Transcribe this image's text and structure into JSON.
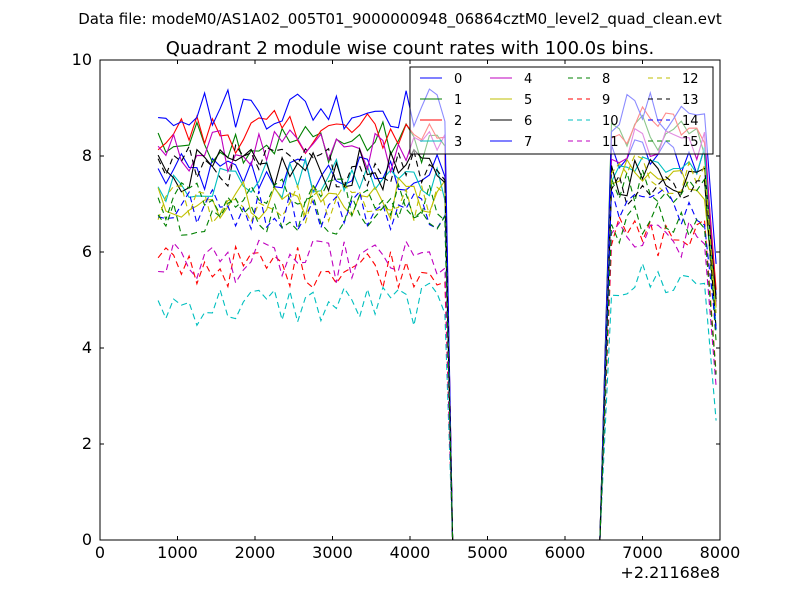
{
  "chart_data": {
    "type": "line",
    "suptitle": "Data file: modeM0/AS1A02_005T01_9000000948_06864cztM0_level2_quad_clean.evt",
    "title": "Quadrant 2 module wise count rates with 100.0s bins.",
    "xlabel": "",
    "ylabel": "",
    "x_offset_label": "+2.21168e8",
    "xlim": [
      0,
      8000
    ],
    "ylim": [
      0,
      10
    ],
    "x_ticks": [
      "0",
      "1000",
      "2000",
      "3000",
      "4000",
      "5000",
      "6000",
      "7000",
      "8000"
    ],
    "y_ticks": [
      "0",
      "2",
      "4",
      "6",
      "8",
      "10"
    ],
    "legend_position": "top-right",
    "gap": [
      4550,
      6450
    ],
    "first_x": 750,
    "last_x": 7950,
    "bin": 100,
    "series": [
      {
        "name": "0",
        "color": "#0000ff",
        "dash": "solid",
        "base1": 7.6,
        "base2": 8.0
      },
      {
        "name": "1",
        "color": "#008000",
        "dash": "solid",
        "base1": 8.3,
        "base2": 8.4
      },
      {
        "name": "2",
        "color": "#ff0000",
        "dash": "solid",
        "base1": 8.5,
        "base2": 8.6
      },
      {
        "name": "3",
        "color": "#00bfbf",
        "dash": "solid",
        "base1": 7.5,
        "base2": 7.8
      },
      {
        "name": "4",
        "color": "#bf00bf",
        "dash": "solid",
        "base1": 8.1,
        "base2": 8.2
      },
      {
        "name": "5",
        "color": "#bfbf00",
        "dash": "solid",
        "base1": 7.1,
        "base2": 7.5
      },
      {
        "name": "6",
        "color": "#000000",
        "dash": "solid",
        "base1": 7.7,
        "base2": 7.6
      },
      {
        "name": "7",
        "color": "#0000ff",
        "dash": "solid",
        "base1": 9.0,
        "base2": 8.9
      },
      {
        "name": "8",
        "color": "#008000",
        "dash": "dashed",
        "base1": 7.1,
        "base2": 7.3
      },
      {
        "name": "9",
        "color": "#ff0000",
        "dash": "dashed",
        "base1": 5.7,
        "base2": 6.3
      },
      {
        "name": "10",
        "color": "#00bfbf",
        "dash": "dashed",
        "base1": 4.9,
        "base2": 5.4
      },
      {
        "name": "11",
        "color": "#bf00bf",
        "dash": "dashed",
        "base1": 5.8,
        "base2": 6.2
      },
      {
        "name": "12",
        "color": "#bfbf00",
        "dash": "dashed",
        "base1": 7.0,
        "base2": 7.6
      },
      {
        "name": "13",
        "color": "#000000",
        "dash": "dashed",
        "base1": 7.8,
        "base2": 7.4
      },
      {
        "name": "14",
        "color": "#0000ff",
        "dash": "dashed",
        "base1": 6.9,
        "base2": 7.0
      },
      {
        "name": "15",
        "color": "#008000",
        "dash": "dashed",
        "base1": 6.8,
        "base2": 6.6
      }
    ]
  }
}
